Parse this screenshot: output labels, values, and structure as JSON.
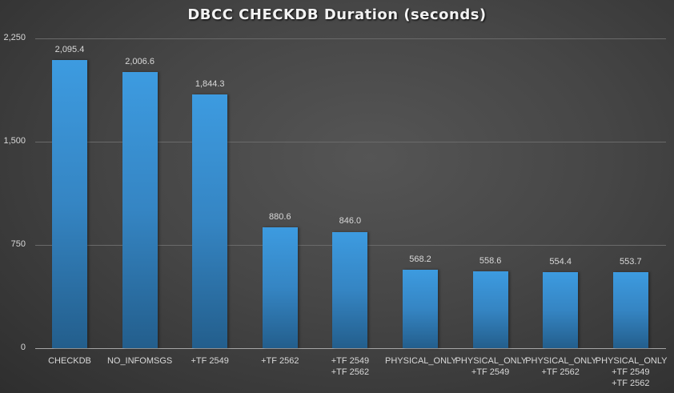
{
  "chart_data": {
    "type": "bar",
    "title": "DBCC CHECKDB Duration (seconds)",
    "xlabel": "",
    "ylabel": "",
    "ylim": [
      0,
      2250
    ],
    "yticks": [
      "0",
      "750",
      "1,500",
      "2,250"
    ],
    "grid": true,
    "legend": "none",
    "categories": [
      "CHECKDB",
      "NO_INFOMSGS",
      "+TF 2549",
      "+TF 2562",
      "+TF 2549\n+TF 2562",
      "PHYSICAL_ONLY",
      "PHYSICAL_ONLY\n+TF 2549",
      "PHYSICAL_ONLY\n+TF 2562",
      "PHYSICAL_ONLY\n+TF 2549\n+TF 2562"
    ],
    "values": [
      2095.4,
      2006.6,
      1844.3,
      880.6,
      846.0,
      568.2,
      558.6,
      554.4,
      553.7
    ],
    "value_labels": [
      "2,095.4",
      "2,006.6",
      "1,844.3",
      "880.6",
      "846.0",
      "568.2",
      "558.6",
      "554.4",
      "553.7"
    ],
    "bar_color": "#3a93d6"
  }
}
